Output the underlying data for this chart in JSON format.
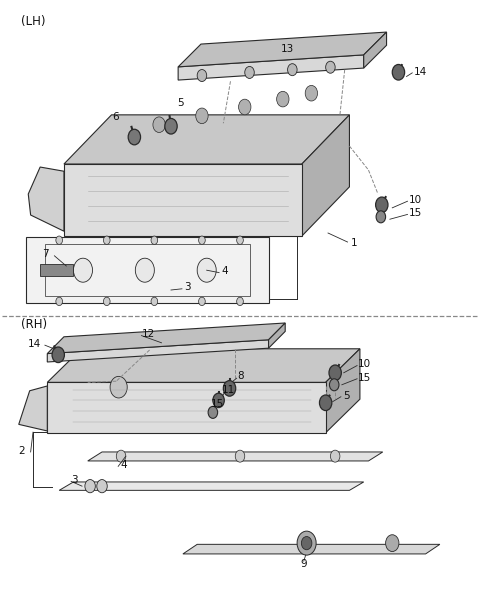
{
  "bg_color": "#ffffff",
  "line_color": "#2a2a2a",
  "dashed_color": "#888888",
  "lh_label": "(LH)",
  "rh_label": "(RH)",
  "figsize": [
    4.8,
    6.04
  ],
  "dpi": 100
}
